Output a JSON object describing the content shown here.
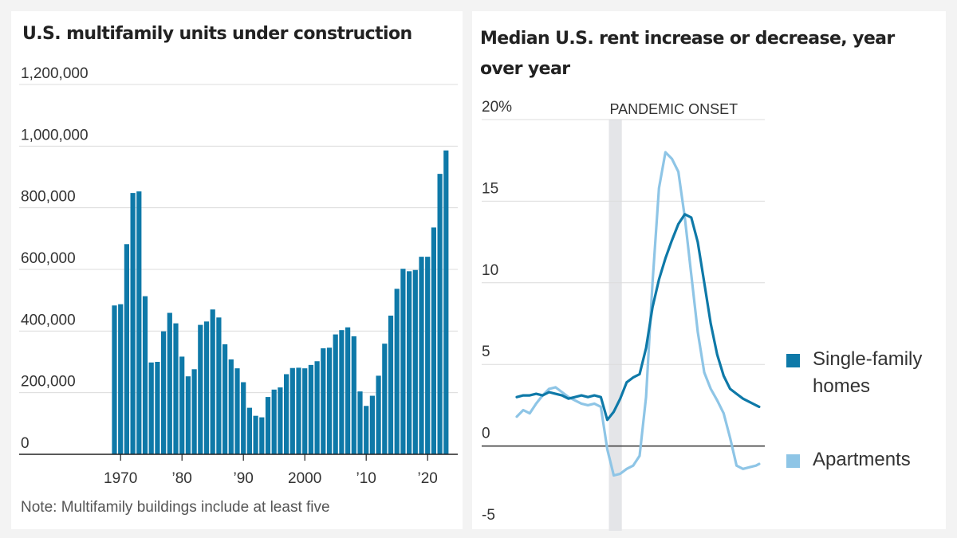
{
  "left": {
    "title": "U.S. multifamily units under construction",
    "note": "Note: Multifamily buildings include at least five"
  },
  "right": {
    "title": "Median U.S. rent increase or decrease, year over year",
    "pandemic_label": "PANDEMIC ONSET",
    "legend": {
      "single": "Single-family homes",
      "apartments": "Apartments"
    }
  },
  "chart_data": [
    {
      "type": "bar",
      "title": "U.S. multifamily units under construction",
      "xlabel": "",
      "ylabel": "",
      "ylim": [
        0,
        1200000
      ],
      "yticks": [
        0,
        200000,
        400000,
        600000,
        800000,
        1000000,
        1200000
      ],
      "ytick_labels": [
        "0",
        "200,000",
        "400,000",
        "600,000",
        "800,000",
        "1,000,000",
        "1,200,000"
      ],
      "xtick_years": [
        1970,
        1980,
        1990,
        2000,
        2010,
        2020
      ],
      "xtick_labels": [
        "1970",
        "’80",
        "’90",
        "2000",
        "’10",
        "’20"
      ],
      "categories": [
        1969,
        1970,
        1971,
        1972,
        1973,
        1974,
        1975,
        1976,
        1977,
        1978,
        1979,
        1980,
        1981,
        1982,
        1983,
        1984,
        1985,
        1986,
        1987,
        1988,
        1989,
        1990,
        1991,
        1992,
        1993,
        1994,
        1995,
        1996,
        1997,
        1998,
        1999,
        2000,
        2001,
        2002,
        2003,
        2004,
        2005,
        2006,
        2007,
        2008,
        2009,
        2010,
        2011,
        2012,
        2013,
        2014,
        2015,
        2016,
        2017,
        2018,
        2019,
        2020,
        2021,
        2022,
        2023
      ],
      "values": [
        483000,
        487000,
        682000,
        848000,
        853000,
        513000,
        298000,
        300000,
        399000,
        459000,
        425000,
        317000,
        253000,
        276000,
        420000,
        431000,
        470000,
        444000,
        357000,
        308000,
        279000,
        234000,
        151000,
        125000,
        120000,
        186000,
        210000,
        217000,
        260000,
        280000,
        281000,
        279000,
        290000,
        302000,
        344000,
        346000,
        389000,
        403000,
        412000,
        383000,
        204000,
        157000,
        190000,
        255000,
        359000,
        450000,
        537000,
        602000,
        594000,
        598000,
        641000,
        641000,
        736000,
        910000,
        986000
      ]
    },
    {
      "type": "line",
      "title": "Median U.S. rent increase or decrease, year over year",
      "xlabel": "",
      "ylabel": "",
      "unit": "%",
      "ylim": [
        -5,
        20
      ],
      "yticks": [
        -5,
        0,
        5,
        10,
        15,
        20
      ],
      "ytick_labels": [
        "-5",
        "0",
        "5",
        "10",
        "15",
        "20%"
      ],
      "x_unit": "months since Jan 2017",
      "xlim": [
        0,
        76
      ],
      "shaded_region": {
        "label": "PANDEMIC ONSET",
        "x": [
          28.5,
          32.5
        ]
      },
      "series": [
        {
          "name": "Single-family homes",
          "color": "#0e79a8",
          "x": [
            0,
            2,
            4,
            6,
            8,
            10,
            12,
            14,
            16,
            18,
            20,
            22,
            24,
            26,
            28,
            30,
            32,
            34,
            36,
            38,
            40,
            42,
            44,
            46,
            48,
            50,
            52,
            54,
            56,
            58,
            60,
            62,
            64,
            66,
            68,
            70,
            72,
            74,
            75
          ],
          "y": [
            3.0,
            3.1,
            3.1,
            3.2,
            3.1,
            3.3,
            3.2,
            3.1,
            2.9,
            3.0,
            3.1,
            3.0,
            3.1,
            3.0,
            1.6,
            2.1,
            2.9,
            3.9,
            4.2,
            4.4,
            6.0,
            8.5,
            10.2,
            11.5,
            12.6,
            13.6,
            14.2,
            14.0,
            12.5,
            10.0,
            7.5,
            5.6,
            4.3,
            3.5,
            3.2,
            2.9,
            2.7,
            2.5,
            2.4
          ]
        },
        {
          "name": "Apartments",
          "color": "#8ec5e6",
          "x": [
            0,
            2,
            4,
            6,
            8,
            10,
            12,
            14,
            16,
            18,
            20,
            22,
            24,
            26,
            28,
            30,
            32,
            34,
            36,
            38,
            40,
            42,
            44,
            46,
            48,
            50,
            52,
            54,
            56,
            58,
            60,
            62,
            64,
            66,
            68,
            70,
            72,
            74,
            75
          ],
          "y": [
            1.8,
            2.2,
            2.0,
            2.6,
            3.1,
            3.5,
            3.6,
            3.3,
            3.0,
            2.8,
            2.6,
            2.5,
            2.6,
            2.4,
            -0.2,
            -1.8,
            -1.7,
            -1.4,
            -1.2,
            -0.6,
            3.0,
            10.0,
            15.8,
            18.0,
            17.6,
            16.8,
            14.0,
            10.5,
            7.0,
            4.5,
            3.5,
            2.8,
            2.0,
            0.5,
            -1.2,
            -1.4,
            -1.3,
            -1.2,
            -1.1
          ]
        }
      ]
    }
  ]
}
